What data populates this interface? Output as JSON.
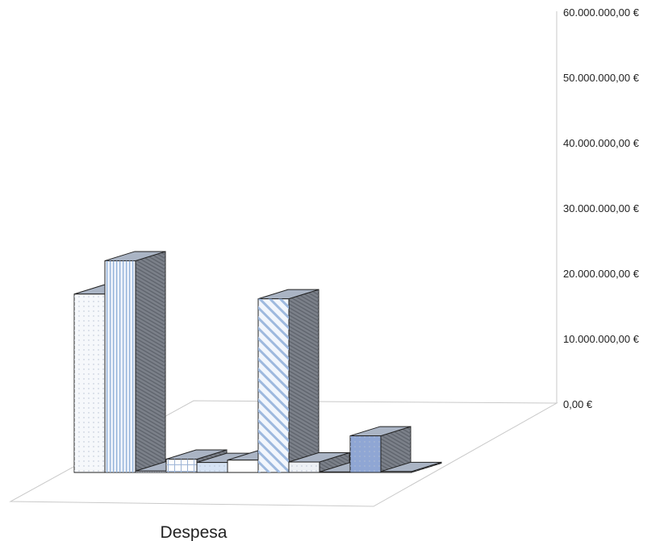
{
  "chart_data": {
    "type": "bar",
    "style": "3d-clustered-column",
    "categories": [
      "Despesa"
    ],
    "xlabel": "Despesa",
    "ylim": [
      0,
      60000000
    ],
    "ytick_labels": [
      "0,00 €",
      "10.000.000,00 €",
      "20.000.000,00 €",
      "30.000.000,00 €",
      "40.000.000,00 €",
      "50.000.000,00 €",
      "60.000.000,00 €"
    ],
    "grid": false,
    "legend": "none",
    "series": [
      {
        "values": [
          37500000
        ],
        "fill": "#f6f8fb",
        "pattern": "dots"
      },
      {
        "values": [
          44500000
        ],
        "fill": "#eef3fb",
        "pattern": "vertical-lines"
      },
      {
        "values": [
          300000
        ],
        "fill": "#dfe6f1",
        "pattern": "fine-dots"
      },
      {
        "values": [
          2800000
        ],
        "fill": "#ffffff",
        "pattern": "grid"
      },
      {
        "values": [
          2100000
        ],
        "fill": "#d6e3f4",
        "pattern": "dots"
      },
      {
        "values": [
          2600000
        ],
        "fill": "#ffffff",
        "pattern": "none"
      },
      {
        "values": [
          36500000
        ],
        "fill": "#f2f6fc",
        "pattern": "diagonal-stripes"
      },
      {
        "values": [
          2200000
        ],
        "fill": "#eef1f5",
        "pattern": "dots"
      },
      {
        "values": [
          100000
        ],
        "fill": "#c8ccd2",
        "pattern": "none"
      },
      {
        "values": [
          7700000
        ],
        "fill": "#8fa6d4",
        "pattern": "dots"
      },
      {
        "values": [
          200000
        ],
        "fill": "#e6eaf0",
        "pattern": "none"
      }
    ]
  }
}
